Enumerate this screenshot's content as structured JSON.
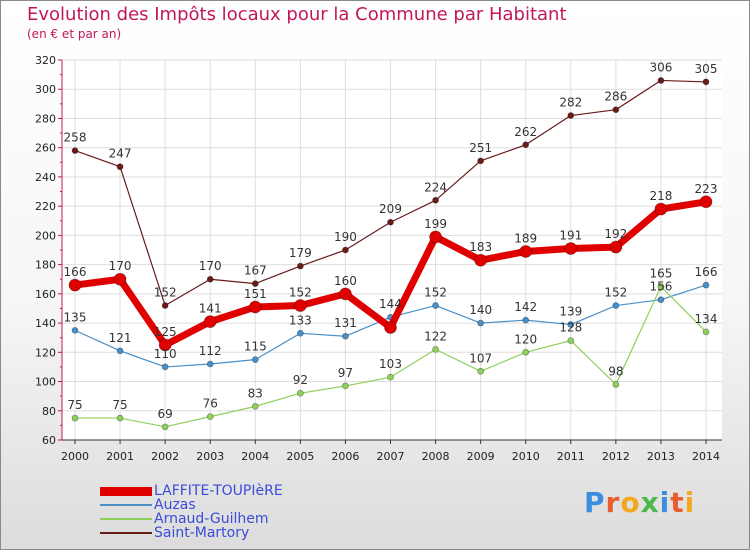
{
  "title": "Evolution des Impôts locaux pour la Commune par Habitant",
  "subtitle": "(en € et par an)",
  "logo": {
    "text": "Proxiti"
  },
  "chart_data": {
    "type": "line",
    "title": "Evolution des Impôts locaux pour la Commune par Habitant",
    "subtitle": "(en € et par an)",
    "xlabel": "",
    "ylabel": "",
    "ylim": [
      60,
      320
    ],
    "yticks": [
      60,
      80,
      100,
      120,
      140,
      160,
      180,
      200,
      220,
      240,
      260,
      280,
      300,
      320
    ],
    "grid": true,
    "legend_position": "bottom-left",
    "categories": [
      "2000",
      "2001",
      "2002",
      "2003",
      "2004",
      "2005",
      "2006",
      "2007",
      "2008",
      "2009",
      "2010",
      "2011",
      "2012",
      "2013",
      "2014"
    ],
    "series": [
      {
        "name": "Saint-Martory",
        "color": "#6b1a1a",
        "values": [
          258,
          247,
          152,
          170,
          167,
          179,
          190,
          209,
          224,
          251,
          262,
          282,
          286,
          306,
          305
        ]
      },
      {
        "name": "Auzas",
        "color": "#4a90c8",
        "values": [
          135,
          121,
          110,
          112,
          115,
          133,
          131,
          144,
          152,
          140,
          142,
          139,
          152,
          156,
          166
        ]
      },
      {
        "name": "Arnaud-Guilhem",
        "color": "#8fd05a",
        "values": [
          75,
          75,
          69,
          76,
          83,
          92,
          97,
          103,
          122,
          107,
          120,
          128,
          98,
          165,
          134
        ]
      },
      {
        "name": "LAFFITE-TOUPIèRE",
        "color": "#e00000",
        "values": [
          166,
          170,
          125,
          141,
          151,
          152,
          160,
          137,
          199,
          183,
          189,
          191,
          192,
          218,
          223
        ]
      }
    ],
    "data_labels": [
      {
        "series": "Saint-Martory",
        "labels": [
          "258",
          "247",
          "152",
          "170",
          "167",
          "179",
          "190",
          "209",
          "224",
          "251",
          "262",
          "282",
          "286",
          "306",
          "305"
        ]
      },
      {
        "series": "Auzas",
        "labels": [
          "135",
          "121",
          "110",
          "112",
          "115",
          "133",
          "131",
          "144",
          "152",
          "140",
          "142",
          "139",
          "152",
          "156",
          "166"
        ]
      },
      {
        "series": "Arnaud-Guilhem",
        "labels": [
          "75",
          "75",
          "69",
          "76",
          "83",
          "92",
          "97",
          "103",
          "122",
          "107",
          "120",
          "128",
          "98",
          "165",
          "134"
        ]
      },
      {
        "series": "LAFFITE-TOUPIèRE",
        "labels": [
          "166",
          "170",
          "125",
          "141",
          "151",
          "152",
          "160",
          "",
          "199",
          "183",
          "189",
          "191",
          "192",
          "218",
          "223"
        ]
      }
    ],
    "legend": [
      {
        "name": "LAFFITE-TOUPIèRE",
        "color": "#e00000"
      },
      {
        "name": "Auzas",
        "color": "#4a90c8"
      },
      {
        "name": "Arnaud-Guilhem",
        "color": "#8fd05a"
      },
      {
        "name": "Saint-Martory",
        "color": "#6b1a1a"
      }
    ]
  }
}
